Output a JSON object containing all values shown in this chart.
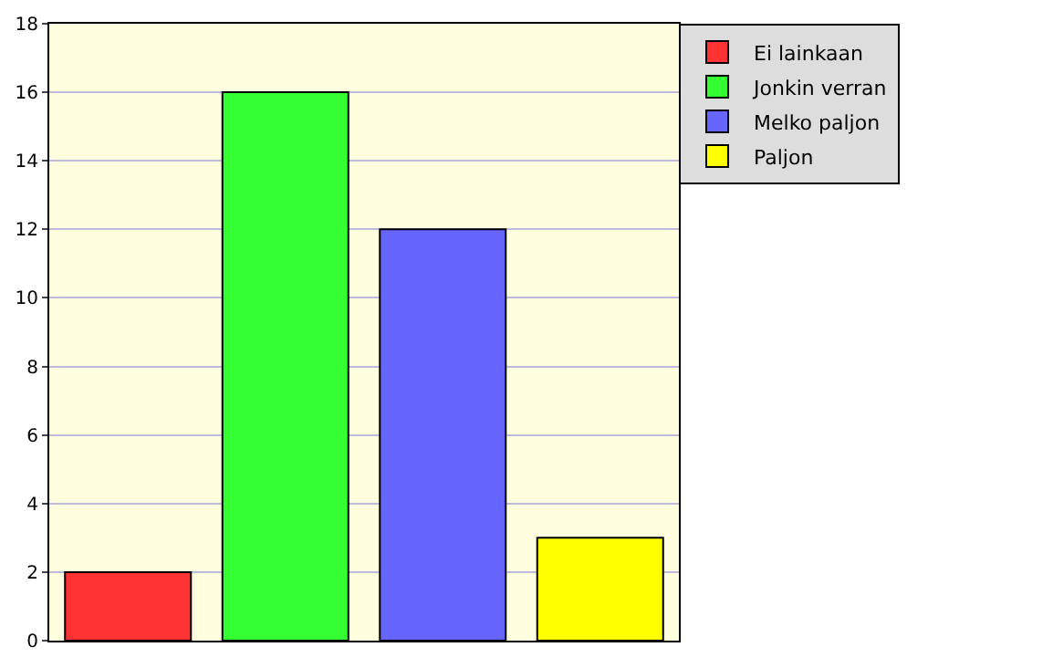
{
  "chart_data": {
    "type": "bar",
    "categories": [
      null,
      null,
      null,
      null
    ],
    "series": [
      {
        "name": "Ei lainkaan",
        "color": "#ff3333",
        "values": [
          2,
          null,
          null,
          null
        ]
      },
      {
        "name": "Jonkin verran",
        "color": "#33ff33",
        "values": [
          null,
          16,
          null,
          null
        ]
      },
      {
        "name": "Melko paljon",
        "color": "#6666ff",
        "values": [
          null,
          null,
          12,
          null
        ]
      },
      {
        "name": "Paljon",
        "color": "#ffff00",
        "values": [
          null,
          null,
          null,
          3
        ]
      }
    ],
    "ylim": [
      0,
      18
    ],
    "yticks": [
      0,
      2,
      4,
      6,
      8,
      10,
      12,
      14,
      16,
      18
    ],
    "grid": "y",
    "legend": "top right"
  }
}
